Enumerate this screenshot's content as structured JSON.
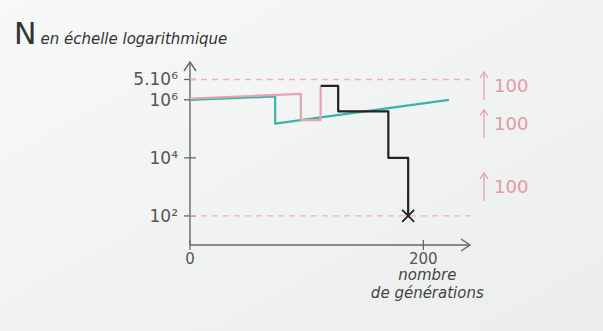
{
  "chart_data": {
    "type": "line",
    "title": "N en échelle logarithmique",
    "x_label": "nombre de générations",
    "log": "y",
    "xlim": [
      0,
      240
    ],
    "xticks": [
      0,
      200
    ],
    "ylim": [
      10,
      20000000
    ],
    "yticks": [
      {
        "value": 100,
        "label": "10²"
      },
      {
        "value": 10000,
        "label": "10⁴"
      },
      {
        "value": 1000000,
        "label": "10⁶"
      },
      {
        "value": 5000000,
        "label": "5.10⁶"
      }
    ],
    "grid": false,
    "reference_lines": [
      5000000,
      100
    ],
    "series": [
      {
        "color": "#3bb3ad",
        "x": [
          0,
          73,
          73,
          222
        ],
        "values": [
          1000000,
          1300000,
          150000,
          1000000
        ]
      },
      {
        "color": "#e6a3ab",
        "x": [
          0,
          95,
          95,
          112,
          112
        ],
        "values": [
          1100000,
          1600000,
          200000,
          200000,
          3000000
        ]
      },
      {
        "color": "#222222",
        "x": [
          112,
          127,
          127,
          170,
          170,
          187,
          187
        ],
        "values": [
          3000000,
          3000000,
          400000,
          400000,
          10000,
          10000,
          100
        ],
        "marker": "x"
      }
    ],
    "annotations": [
      {
        "text": "100",
        "y": 3000000
      },
      {
        "text": "100",
        "y": 150000
      },
      {
        "text": "100",
        "y": 1000
      }
    ]
  }
}
